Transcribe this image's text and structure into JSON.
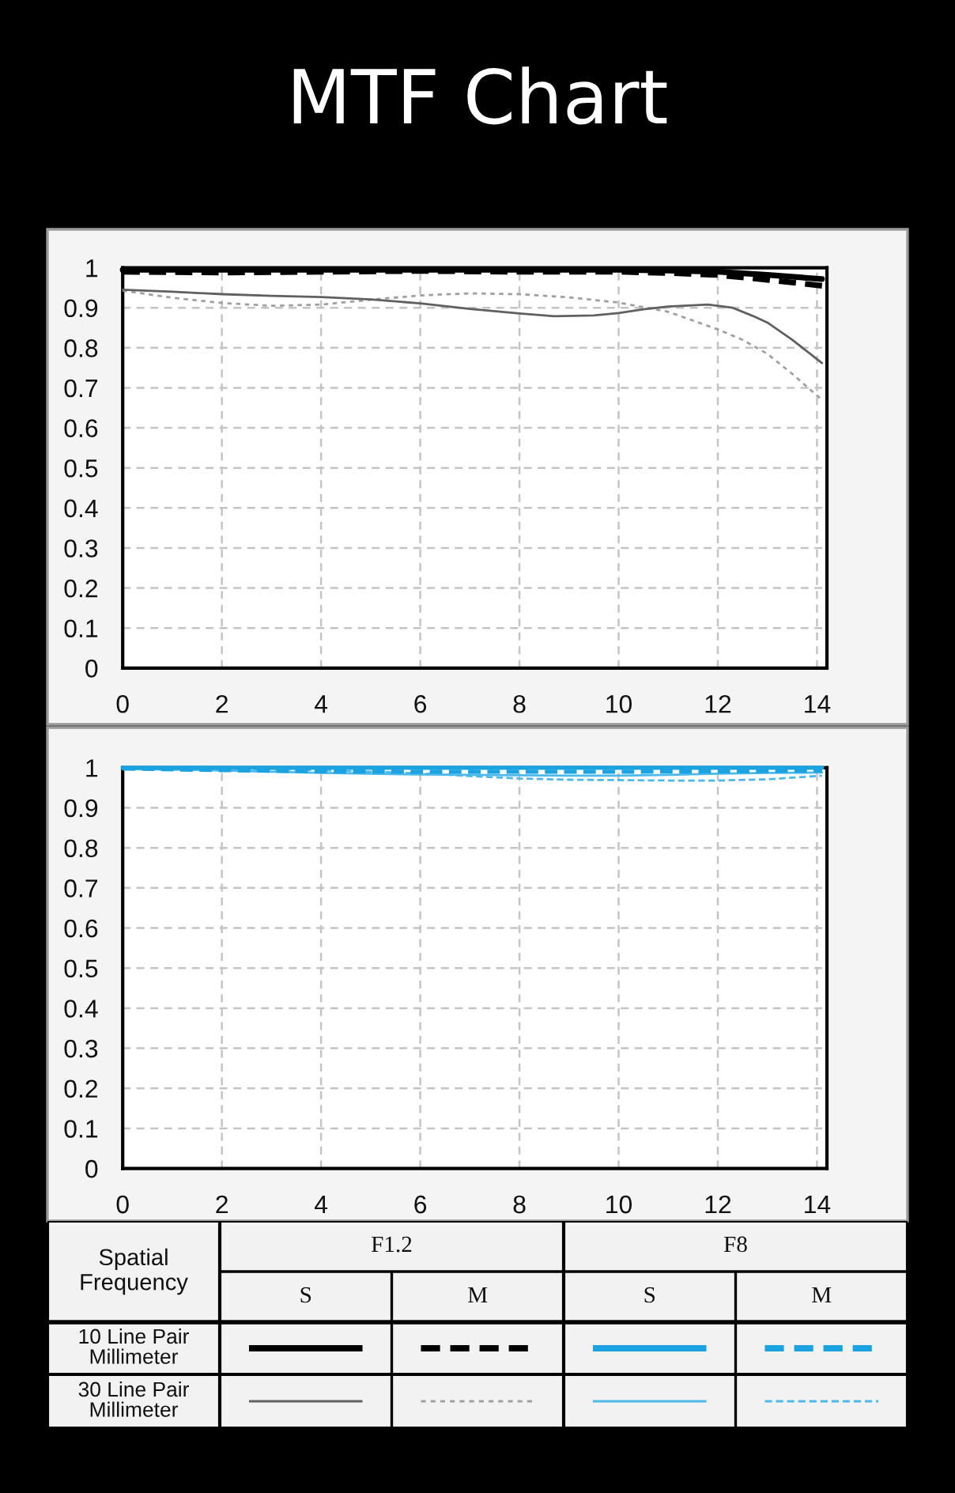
{
  "chart_data": [
    {
      "type": "line",
      "title": "MTF Chart",
      "xlim": [
        0,
        14.2
      ],
      "xticks": [
        0,
        2,
        4,
        6,
        8,
        10,
        12,
        14
      ],
      "ylim": [
        0,
        1
      ],
      "yticks": [
        0,
        0.1,
        0.2,
        0.3,
        0.4,
        0.5,
        0.6,
        0.7,
        0.8,
        0.9,
        1
      ],
      "grid": true,
      "series": [
        {
          "color": "#000000",
          "line_style": "solid",
          "x": [
            0,
            2,
            4,
            6,
            8,
            10,
            11,
            12,
            13,
            14.1
          ],
          "values": [
            0.995,
            0.995,
            0.995,
            0.995,
            0.995,
            0.995,
            0.993,
            0.99,
            0.982,
            0.972
          ]
        },
        {
          "color": "#000000",
          "line_style": "dashed",
          "x": [
            0,
            2,
            4,
            6,
            8,
            10,
            11,
            12,
            13,
            14.1
          ],
          "values": [
            0.99,
            0.988,
            0.99,
            0.992,
            0.99,
            0.99,
            0.987,
            0.982,
            0.97,
            0.955
          ]
        },
        {
          "color": "#606060",
          "line_style": "solid",
          "x": [
            0,
            1,
            2,
            3,
            4,
            5,
            6,
            7,
            8,
            8.7,
            9.5,
            10,
            10.5,
            11,
            11.8,
            12.3,
            12.7,
            13,
            13.5,
            14.1
          ],
          "values": [
            0.945,
            0.94,
            0.934,
            0.93,
            0.927,
            0.921,
            0.911,
            0.897,
            0.886,
            0.879,
            0.881,
            0.887,
            0.896,
            0.903,
            0.908,
            0.9,
            0.88,
            0.863,
            0.82,
            0.762
          ]
        },
        {
          "color": "#a0a0a0",
          "line_style": "dotted",
          "x": [
            0,
            1,
            2,
            3,
            4,
            5,
            6,
            7,
            8,
            9,
            10,
            11,
            12,
            12.5,
            13,
            13.5,
            14.1
          ],
          "values": [
            0.943,
            0.925,
            0.912,
            0.905,
            0.908,
            0.92,
            0.931,
            0.936,
            0.934,
            0.926,
            0.913,
            0.89,
            0.846,
            0.82,
            0.785,
            0.735,
            0.67
          ]
        }
      ]
    },
    {
      "type": "line",
      "xlim": [
        0,
        14.2
      ],
      "xticks": [
        0,
        2,
        4,
        6,
        8,
        10,
        12,
        14
      ],
      "ylim": [
        0,
        1
      ],
      "yticks": [
        0,
        0.1,
        0.2,
        0.3,
        0.4,
        0.5,
        0.6,
        0.7,
        0.8,
        0.9,
        1
      ],
      "grid": true,
      "series": [
        {
          "color": "#1aa3e0",
          "line_style": "solid",
          "x": [
            0,
            2,
            4,
            6,
            8,
            10,
            12,
            14.1
          ],
          "values": [
            1.0,
            1.0,
            1.0,
            1.0,
            1.0,
            1.0,
            1.0,
            1.0
          ]
        },
        {
          "color": "#1aa3e0",
          "line_style": "dashed",
          "x": [
            0,
            2,
            4,
            6,
            8,
            10,
            12,
            14.1
          ],
          "values": [
            0.998,
            0.994,
            0.991,
            0.99,
            0.99,
            0.99,
            0.991,
            0.993
          ]
        },
        {
          "color": "#4cb9ea",
          "line_style": "solid",
          "x": [
            0,
            2,
            4,
            6,
            8,
            9,
            10,
            11,
            12,
            13,
            14.1
          ],
          "values": [
            0.997,
            0.993,
            0.987,
            0.983,
            0.981,
            0.98,
            0.98,
            0.982,
            0.985,
            0.987,
            0.988
          ]
        },
        {
          "color": "#4cb9ea",
          "line_style": "dashed",
          "x": [
            0,
            2,
            4,
            6,
            7,
            8,
            9,
            10,
            11,
            12,
            13,
            14.1
          ],
          "values": [
            1.0,
            0.998,
            0.994,
            0.986,
            0.979,
            0.973,
            0.97,
            0.969,
            0.968,
            0.968,
            0.971,
            0.98
          ]
        }
      ]
    },
    {
      "type": "other",
      "annotations": [
        "Spatial Frequency",
        "F1.2",
        "F8",
        "S",
        "M",
        "S",
        "M",
        "10 Line Pair Millimeter",
        "30 Line Pair Millimeter"
      ]
    }
  ]
}
